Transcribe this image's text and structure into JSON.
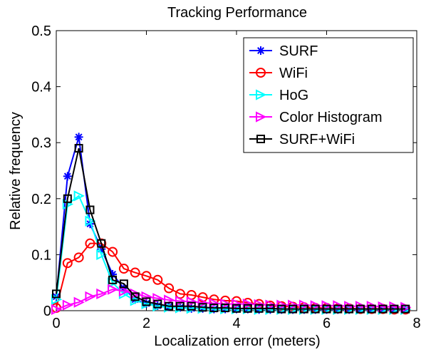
{
  "chart_data": {
    "type": "line",
    "title": "Tracking Performance",
    "xlabel": "Localization error (meters)",
    "ylabel": "Relative frequency",
    "xlim": [
      0,
      8
    ],
    "ylim": [
      0,
      0.5
    ],
    "xticks": [
      "0",
      "2",
      "4",
      "6",
      "8"
    ],
    "yticks": [
      "0",
      "0.1",
      "0.2",
      "0.3",
      "0.4",
      "0.5"
    ],
    "grid": false,
    "legend_position": "top-right",
    "x": [
      0,
      0.25,
      0.5,
      0.75,
      1,
      1.25,
      1.5,
      1.75,
      2,
      2.25,
      2.5,
      2.75,
      3,
      3.25,
      3.5,
      3.75,
      4,
      4.25,
      4.5,
      4.75,
      5,
      5.25,
      5.5,
      5.75,
      6,
      6.25,
      6.5,
      6.75,
      7,
      7.25,
      7.5,
      7.75
    ],
    "series": [
      {
        "name": "SURF",
        "color": "#0000ff",
        "marker": "asterisk",
        "values": [
          0.025,
          0.24,
          0.31,
          0.155,
          0.11,
          0.065,
          0.04,
          0.02,
          0.013,
          0.009,
          0.007,
          0.006,
          0.004,
          0.004,
          0.003,
          0.003,
          0.003,
          0.003,
          0.002,
          0.002,
          0.002,
          0.002,
          0.002,
          0.002,
          0.002,
          0.002,
          0.002,
          0.002,
          0.002,
          0.002,
          0.002,
          0.002
        ]
      },
      {
        "name": "WiFi",
        "color": "#ff0000",
        "marker": "circle",
        "values": [
          0.005,
          0.085,
          0.095,
          0.12,
          0.12,
          0.105,
          0.075,
          0.068,
          0.062,
          0.055,
          0.04,
          0.03,
          0.028,
          0.024,
          0.02,
          0.018,
          0.017,
          0.014,
          0.012,
          0.009,
          0.008,
          0.007,
          0.006,
          0.005,
          0.005,
          0.004,
          0.004,
          0.003,
          0.003,
          0.003,
          0.002,
          0.002
        ]
      },
      {
        "name": "HoG",
        "color": "#00ffff",
        "marker": "triangle-right",
        "values": [
          0.02,
          0.19,
          0.205,
          0.16,
          0.1,
          0.05,
          0.03,
          0.018,
          0.012,
          0.008,
          0.006,
          0.005,
          0.004,
          0.004,
          0.003,
          0.003,
          0.003,
          0.003,
          0.002,
          0.002,
          0.002,
          0.002,
          0.002,
          0.002,
          0.002,
          0.002,
          0.002,
          0.002,
          0.002,
          0.002,
          0.002,
          0.002
        ]
      },
      {
        "name": "Color Histogram",
        "color": "#ff00ff",
        "marker": "triangle-right",
        "values": [
          0.002,
          0.01,
          0.015,
          0.025,
          0.03,
          0.038,
          0.035,
          0.03,
          0.025,
          0.022,
          0.019,
          0.017,
          0.016,
          0.014,
          0.013,
          0.012,
          0.012,
          0.012,
          0.011,
          0.01,
          0.01,
          0.01,
          0.01,
          0.009,
          0.009,
          0.009,
          0.008,
          0.008,
          0.008,
          0.007,
          0.007,
          0.006
        ]
      },
      {
        "name": "SURF+WiFi",
        "color": "#000000",
        "marker": "square",
        "values": [
          0.03,
          0.2,
          0.29,
          0.18,
          0.12,
          0.055,
          0.048,
          0.025,
          0.016,
          0.012,
          0.008,
          0.008,
          0.008,
          0.006,
          0.005,
          0.005,
          0.004,
          0.004,
          0.004,
          0.004,
          0.003,
          0.003,
          0.003,
          0.003,
          0.003,
          0.003,
          0.003,
          0.003,
          0.003,
          0.003,
          0.003,
          0.003
        ]
      }
    ]
  }
}
